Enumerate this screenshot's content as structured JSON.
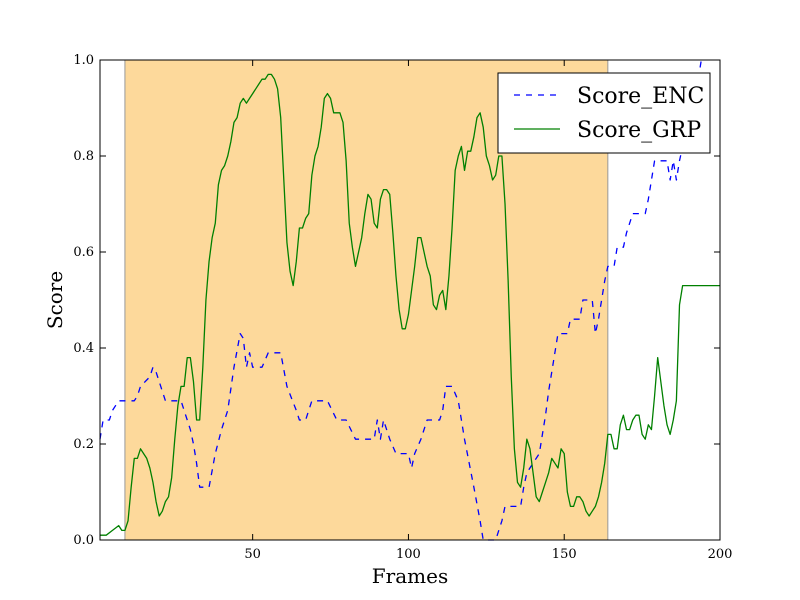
{
  "chart_data": {
    "type": "line",
    "xlabel": "Frames",
    "ylabel": "Score",
    "xlim": [
      1,
      200
    ],
    "ylim": [
      0.0,
      1.0
    ],
    "xticks": [
      50,
      100,
      150,
      200
    ],
    "yticks": [
      0.0,
      0.2,
      0.4,
      0.6,
      0.8,
      1.0
    ],
    "xtick_labels": [
      "50",
      "100",
      "150",
      "200"
    ],
    "ytick_labels": [
      "0.0",
      "0.2",
      "0.4",
      "0.6",
      "0.8",
      "1.0"
    ],
    "grid": false,
    "legend_position": "top-right",
    "shaded_region": {
      "x_start": 9,
      "x_end": 164,
      "color": "#fdd99b"
    },
    "series": [
      {
        "name": "Score_ENC",
        "color": "#0000ff",
        "style": "dashed",
        "points": [
          [
            1,
            0.21
          ],
          [
            2,
            0.25
          ],
          [
            4,
            0.25
          ],
          [
            5,
            0.27
          ],
          [
            7,
            0.29
          ],
          [
            12,
            0.29
          ],
          [
            13,
            0.3
          ],
          [
            14,
            0.32
          ],
          [
            17,
            0.34
          ],
          [
            18,
            0.36
          ],
          [
            19,
            0.35
          ],
          [
            20,
            0.33
          ],
          [
            22,
            0.29
          ],
          [
            27,
            0.29
          ],
          [
            29,
            0.25
          ],
          [
            30,
            0.23
          ],
          [
            31,
            0.2
          ],
          [
            32,
            0.16
          ],
          [
            33,
            0.11
          ],
          [
            36,
            0.11
          ],
          [
            38,
            0.18
          ],
          [
            40,
            0.23
          ],
          [
            42,
            0.27
          ],
          [
            44,
            0.36
          ],
          [
            46,
            0.43
          ],
          [
            47,
            0.42
          ],
          [
            48,
            0.36
          ],
          [
            49,
            0.39
          ],
          [
            50,
            0.36
          ],
          [
            53,
            0.36
          ],
          [
            55,
            0.39
          ],
          [
            59,
            0.39
          ],
          [
            61,
            0.32
          ],
          [
            64,
            0.27
          ],
          [
            65,
            0.25
          ],
          [
            67,
            0.25
          ],
          [
            69,
            0.29
          ],
          [
            74,
            0.29
          ],
          [
            77,
            0.25
          ],
          [
            80,
            0.25
          ],
          [
            83,
            0.21
          ],
          [
            89,
            0.21
          ],
          [
            90,
            0.25
          ],
          [
            91,
            0.21
          ],
          [
            92,
            0.25
          ],
          [
            94,
            0.21
          ],
          [
            96,
            0.18
          ],
          [
            100,
            0.18
          ],
          [
            101,
            0.15
          ],
          [
            102,
            0.18
          ],
          [
            104,
            0.21
          ],
          [
            106,
            0.25
          ],
          [
            110,
            0.25
          ],
          [
            111,
            0.27
          ],
          [
            112,
            0.32
          ],
          [
            114,
            0.32
          ],
          [
            116,
            0.29
          ],
          [
            118,
            0.21
          ],
          [
            121,
            0.11
          ],
          [
            123,
            0.04
          ],
          [
            124,
            0.0
          ],
          [
            128,
            0.0
          ],
          [
            130,
            0.04
          ],
          [
            131,
            0.07
          ],
          [
            136,
            0.07
          ],
          [
            137,
            0.11
          ],
          [
            138,
            0.14
          ],
          [
            142,
            0.18
          ],
          [
            143,
            0.22
          ],
          [
            144,
            0.26
          ],
          [
            145,
            0.31
          ],
          [
            146,
            0.35
          ],
          [
            147,
            0.39
          ],
          [
            148,
            0.43
          ],
          [
            151,
            0.43
          ],
          [
            152,
            0.46
          ],
          [
            155,
            0.46
          ],
          [
            156,
            0.5
          ],
          [
            159,
            0.5
          ],
          [
            160,
            0.43
          ],
          [
            161,
            0.46
          ],
          [
            162,
            0.5
          ],
          [
            163,
            0.54
          ],
          [
            164,
            0.57
          ],
          [
            166,
            0.57
          ],
          [
            167,
            0.61
          ],
          [
            169,
            0.61
          ],
          [
            170,
            0.64
          ],
          [
            172,
            0.68
          ],
          [
            176,
            0.68
          ],
          [
            177,
            0.71
          ],
          [
            178,
            0.75
          ],
          [
            179,
            0.79
          ],
          [
            183,
            0.79
          ],
          [
            184,
            0.75
          ],
          [
            185,
            0.79
          ],
          [
            186,
            0.75
          ],
          [
            187,
            0.79
          ],
          [
            188,
            0.82
          ],
          [
            190,
            0.86
          ],
          [
            191,
            0.89
          ],
          [
            192,
            0.93
          ],
          [
            193,
            0.96
          ],
          [
            194,
            1.0
          ]
        ]
      },
      {
        "name": "Score_GRP",
        "color": "#008000",
        "style": "solid",
        "points": [
          [
            1,
            0.01
          ],
          [
            3,
            0.01
          ],
          [
            5,
            0.02
          ],
          [
            7,
            0.03
          ],
          [
            8,
            0.02
          ],
          [
            9,
            0.02
          ],
          [
            10,
            0.04
          ],
          [
            11,
            0.11
          ],
          [
            12,
            0.17
          ],
          [
            13,
            0.17
          ],
          [
            14,
            0.19
          ],
          [
            15,
            0.18
          ],
          [
            16,
            0.17
          ],
          [
            17,
            0.15
          ],
          [
            18,
            0.12
          ],
          [
            19,
            0.08
          ],
          [
            20,
            0.05
          ],
          [
            21,
            0.06
          ],
          [
            22,
            0.08
          ],
          [
            23,
            0.09
          ],
          [
            24,
            0.13
          ],
          [
            25,
            0.21
          ],
          [
            26,
            0.28
          ],
          [
            27,
            0.32
          ],
          [
            28,
            0.32
          ],
          [
            29,
            0.38
          ],
          [
            30,
            0.38
          ],
          [
            31,
            0.33
          ],
          [
            32,
            0.25
          ],
          [
            33,
            0.25
          ],
          [
            34,
            0.36
          ],
          [
            35,
            0.5
          ],
          [
            36,
            0.58
          ],
          [
            37,
            0.63
          ],
          [
            38,
            0.66
          ],
          [
            39,
            0.74
          ],
          [
            40,
            0.77
          ],
          [
            41,
            0.78
          ],
          [
            42,
            0.8
          ],
          [
            43,
            0.83
          ],
          [
            44,
            0.87
          ],
          [
            45,
            0.88
          ],
          [
            46,
            0.91
          ],
          [
            47,
            0.92
          ],
          [
            48,
            0.91
          ],
          [
            49,
            0.92
          ],
          [
            50,
            0.93
          ],
          [
            51,
            0.94
          ],
          [
            52,
            0.95
          ],
          [
            53,
            0.96
          ],
          [
            54,
            0.96
          ],
          [
            55,
            0.97
          ],
          [
            56,
            0.97
          ],
          [
            57,
            0.96
          ],
          [
            58,
            0.94
          ],
          [
            59,
            0.88
          ],
          [
            60,
            0.75
          ],
          [
            61,
            0.62
          ],
          [
            62,
            0.56
          ],
          [
            63,
            0.53
          ],
          [
            64,
            0.58
          ],
          [
            65,
            0.65
          ],
          [
            66,
            0.65
          ],
          [
            67,
            0.67
          ],
          [
            68,
            0.68
          ],
          [
            69,
            0.76
          ],
          [
            70,
            0.8
          ],
          [
            71,
            0.82
          ],
          [
            72,
            0.86
          ],
          [
            73,
            0.92
          ],
          [
            74,
            0.93
          ],
          [
            75,
            0.92
          ],
          [
            76,
            0.89
          ],
          [
            77,
            0.89
          ],
          [
            78,
            0.89
          ],
          [
            79,
            0.87
          ],
          [
            80,
            0.79
          ],
          [
            81,
            0.66
          ],
          [
            82,
            0.61
          ],
          [
            83,
            0.57
          ],
          [
            84,
            0.6
          ],
          [
            85,
            0.63
          ],
          [
            86,
            0.68
          ],
          [
            87,
            0.72
          ],
          [
            88,
            0.71
          ],
          [
            89,
            0.66
          ],
          [
            90,
            0.65
          ],
          [
            91,
            0.71
          ],
          [
            92,
            0.73
          ],
          [
            93,
            0.73
          ],
          [
            94,
            0.72
          ],
          [
            95,
            0.64
          ],
          [
            96,
            0.55
          ],
          [
            97,
            0.48
          ],
          [
            98,
            0.44
          ],
          [
            99,
            0.44
          ],
          [
            100,
            0.47
          ],
          [
            101,
            0.52
          ],
          [
            102,
            0.57
          ],
          [
            103,
            0.63
          ],
          [
            104,
            0.63
          ],
          [
            105,
            0.6
          ],
          [
            106,
            0.57
          ],
          [
            107,
            0.55
          ],
          [
            108,
            0.49
          ],
          [
            109,
            0.48
          ],
          [
            110,
            0.51
          ],
          [
            111,
            0.52
          ],
          [
            112,
            0.48
          ],
          [
            113,
            0.55
          ],
          [
            114,
            0.65
          ],
          [
            115,
            0.77
          ],
          [
            116,
            0.8
          ],
          [
            117,
            0.82
          ],
          [
            118,
            0.77
          ],
          [
            119,
            0.81
          ],
          [
            120,
            0.81
          ],
          [
            121,
            0.84
          ],
          [
            122,
            0.88
          ],
          [
            123,
            0.89
          ],
          [
            124,
            0.86
          ],
          [
            125,
            0.8
          ],
          [
            126,
            0.78
          ],
          [
            127,
            0.75
          ],
          [
            128,
            0.76
          ],
          [
            129,
            0.8
          ],
          [
            130,
            0.8
          ],
          [
            131,
            0.7
          ],
          [
            132,
            0.54
          ],
          [
            133,
            0.34
          ],
          [
            134,
            0.19
          ],
          [
            135,
            0.12
          ],
          [
            136,
            0.11
          ],
          [
            137,
            0.15
          ],
          [
            138,
            0.21
          ],
          [
            139,
            0.19
          ],
          [
            140,
            0.14
          ],
          [
            141,
            0.09
          ],
          [
            142,
            0.08
          ],
          [
            143,
            0.1
          ],
          [
            144,
            0.12
          ],
          [
            145,
            0.14
          ],
          [
            146,
            0.17
          ],
          [
            147,
            0.16
          ],
          [
            148,
            0.15
          ],
          [
            149,
            0.19
          ],
          [
            150,
            0.18
          ],
          [
            151,
            0.1
          ],
          [
            152,
            0.07
          ],
          [
            153,
            0.07
          ],
          [
            154,
            0.09
          ],
          [
            155,
            0.09
          ],
          [
            156,
            0.08
          ],
          [
            157,
            0.06
          ],
          [
            158,
            0.05
          ],
          [
            159,
            0.06
          ],
          [
            160,
            0.07
          ],
          [
            161,
            0.09
          ],
          [
            162,
            0.12
          ],
          [
            163,
            0.16
          ],
          [
            164,
            0.22
          ],
          [
            165,
            0.22
          ],
          [
            166,
            0.19
          ],
          [
            167,
            0.19
          ],
          [
            168,
            0.24
          ],
          [
            169,
            0.26
          ],
          [
            170,
            0.23
          ],
          [
            171,
            0.23
          ],
          [
            172,
            0.25
          ],
          [
            173,
            0.26
          ],
          [
            174,
            0.26
          ],
          [
            175,
            0.22
          ],
          [
            176,
            0.21
          ],
          [
            177,
            0.24
          ],
          [
            178,
            0.23
          ],
          [
            179,
            0.3
          ],
          [
            180,
            0.38
          ],
          [
            181,
            0.33
          ],
          [
            182,
            0.28
          ],
          [
            183,
            0.24
          ],
          [
            184,
            0.22
          ],
          [
            185,
            0.25
          ],
          [
            186,
            0.29
          ],
          [
            187,
            0.49
          ],
          [
            188,
            0.53
          ],
          [
            200,
            0.53
          ]
        ]
      }
    ]
  }
}
